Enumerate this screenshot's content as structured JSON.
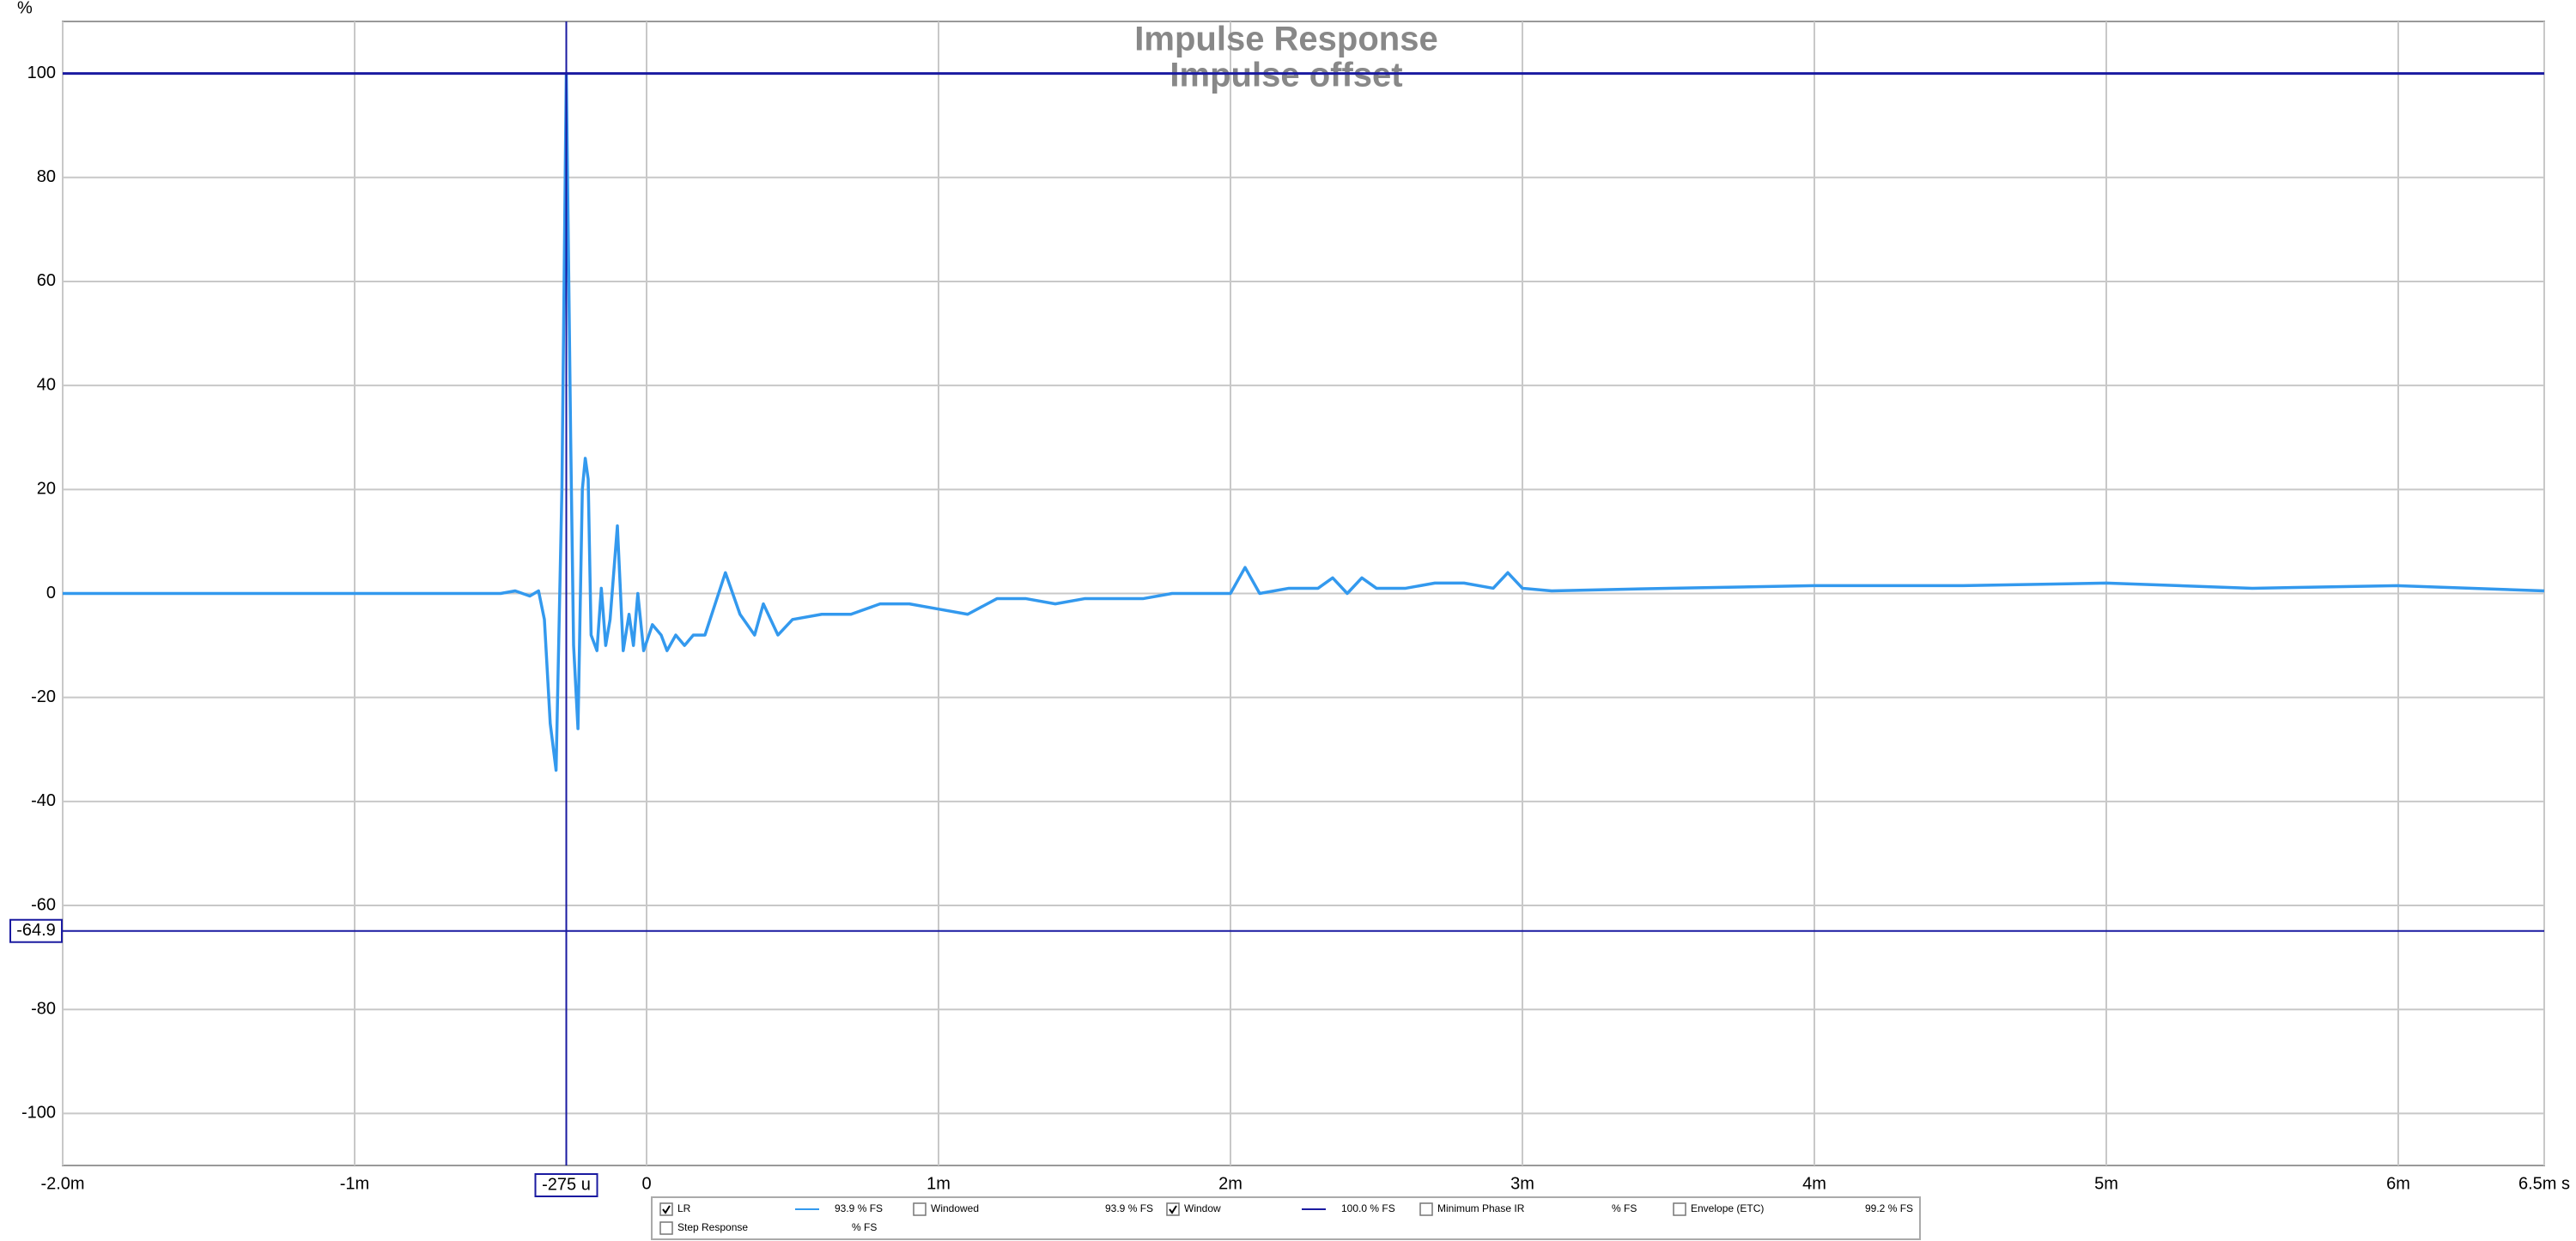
{
  "chart_data": {
    "type": "line",
    "title": "Impulse Response",
    "subtitle": "Impulse offset",
    "y_unit": "%",
    "xlim": [
      -2,
      6.5
    ],
    "ylim": [
      -110,
      110
    ],
    "xticks": [
      {
        "value": -2,
        "label": "-2.0m"
      },
      {
        "value": -1,
        "label": "-1m"
      },
      0,
      {
        "value": 1,
        "label": "1m"
      },
      {
        "value": 2,
        "label": "2m"
      },
      {
        "value": 3,
        "label": "3m"
      },
      {
        "value": 4,
        "label": "4m"
      },
      {
        "value": 5,
        "label": "5m"
      },
      {
        "value": 6,
        "label": "6m"
      },
      {
        "value": 6.5,
        "label": "6.5m s"
      }
    ],
    "yticks": [
      -100,
      -80,
      -60,
      -40,
      -20,
      0,
      20,
      40,
      60,
      80,
      100
    ],
    "grid": true,
    "cursor": {
      "x": -0.275,
      "x_label": "-275 u",
      "y": -64.9,
      "color": "#1a1aa0"
    },
    "series": [
      {
        "name": "LR",
        "color": "#3399ee",
        "checked": true,
        "reading": "93.9 % FS",
        "x": [
          -2,
          -0.5,
          -0.45,
          -0.4,
          -0.37,
          -0.35,
          -0.33,
          -0.31,
          -0.29,
          -0.275,
          -0.26,
          -0.25,
          -0.235,
          -0.22,
          -0.21,
          -0.2,
          -0.19,
          -0.17,
          -0.155,
          -0.14,
          -0.125,
          -0.1,
          -0.08,
          -0.06,
          -0.045,
          -0.03,
          -0.01,
          0.02,
          0.05,
          0.07,
          0.1,
          0.13,
          0.16,
          0.2,
          0.27,
          0.32,
          0.37,
          0.4,
          0.45,
          0.5,
          0.6,
          0.7,
          0.8,
          0.9,
          1.0,
          1.1,
          1.2,
          1.3,
          1.4,
          1.5,
          1.7,
          1.8,
          2.0,
          2.05,
          2.1,
          2.2,
          2.3,
          2.35,
          2.4,
          2.45,
          2.5,
          2.6,
          2.7,
          2.8,
          2.9,
          2.95,
          3.0,
          3.1,
          3.5,
          4.0,
          4.5,
          5.0,
          5.5,
          6.0,
          6.5
        ],
        "values": [
          0,
          0,
          0.5,
          -0.5,
          0.5,
          -5,
          -25,
          -34,
          20,
          100,
          30,
          -10,
          -26,
          20,
          26,
          22,
          -8,
          -11,
          1,
          -10,
          -5,
          13,
          -11,
          -4,
          -10,
          0,
          -11,
          -6,
          -8,
          -11,
          -8,
          -10,
          -8,
          -8,
          4,
          -4,
          -8,
          -2,
          -8,
          -5,
          -4,
          -4,
          -2,
          -2,
          -3,
          -4,
          -1,
          -1,
          -2,
          -1,
          -1,
          0,
          0,
          5,
          0,
          1,
          1,
          3,
          0,
          3,
          1,
          1,
          2,
          2,
          1,
          4,
          1,
          0.5,
          1,
          1.5,
          1.5,
          2,
          1,
          1.5,
          0.5
        ]
      },
      {
        "name": "Windowed",
        "color": "#33cccc",
        "checked": false,
        "reading": "93.9 % FS"
      },
      {
        "name": "Window",
        "color": "#1a1aa0",
        "checked": true,
        "reading": "100.0 % FS",
        "x": [
          -2,
          6.5
        ],
        "values": [
          100,
          100
        ]
      },
      {
        "name": "Minimum Phase IR",
        "color": "#aaaaaa",
        "checked": false,
        "reading": "% FS"
      },
      {
        "name": "Envelope (ETC)",
        "color": "#1a4a8a",
        "checked": false,
        "reading": "99.2 % FS"
      },
      {
        "name": "Step Response",
        "color": "#333333",
        "checked": false,
        "reading": "% FS"
      }
    ]
  }
}
